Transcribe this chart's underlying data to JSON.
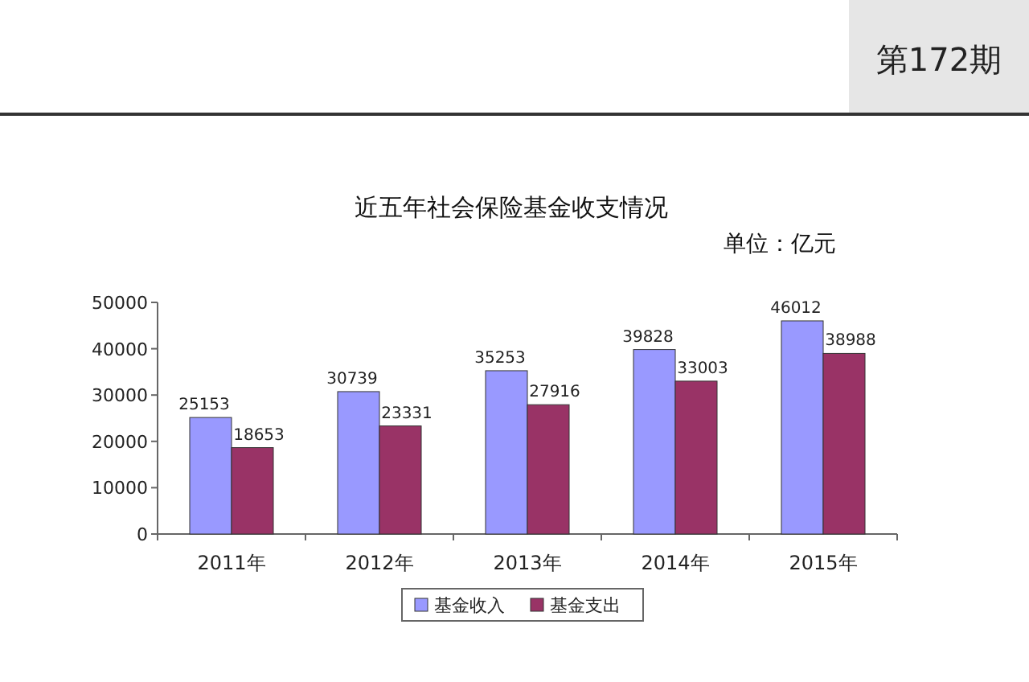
{
  "chart_data": {
    "type": "bar",
    "title": "近五年社会保险基金收支情况",
    "subtitle": "单位：亿元",
    "annotations": [
      "第172期"
    ],
    "categories": [
      "2011年",
      "2012年",
      "2013年",
      "2014年",
      "2015年"
    ],
    "series": [
      {
        "name": "基金收入",
        "color": "#9999ff",
        "values": [
          25153,
          30739,
          35253,
          39828,
          46012
        ]
      },
      {
        "name": "基金支出",
        "color": "#993366",
        "values": [
          18653,
          23331,
          27916,
          33003,
          38988
        ]
      }
    ],
    "ylim": [
      0,
      50000
    ],
    "yticks": [
      0,
      10000,
      20000,
      30000,
      40000,
      50000
    ],
    "data_labels": true,
    "legend": "bottom",
    "grid": false
  }
}
